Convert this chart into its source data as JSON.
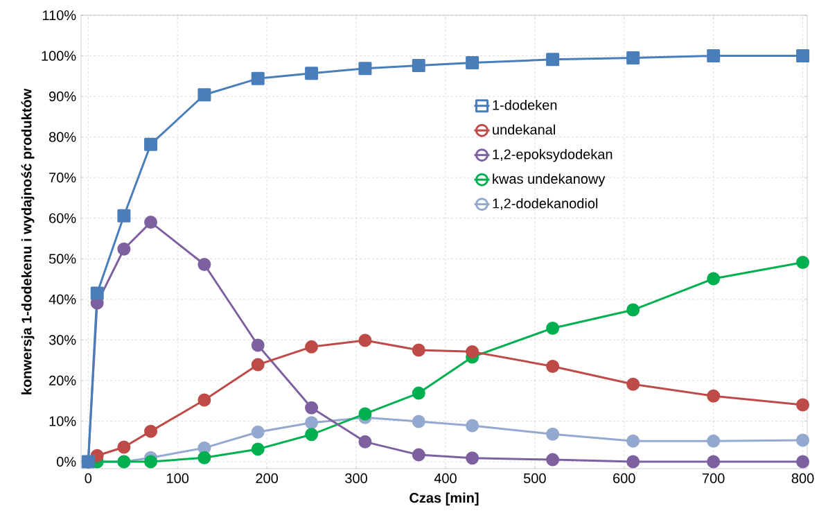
{
  "chart_data": {
    "type": "line",
    "xlabel": "Czas [min]",
    "ylabel": "konwersja 1-dodekenu i wydajność produktów",
    "x": [
      0,
      10,
      40,
      70,
      130,
      190,
      250,
      310,
      370,
      430,
      520,
      610,
      700,
      800
    ],
    "series": [
      {
        "name": "1-dodeken",
        "color": "#4a7ebb",
        "marker": "square",
        "values": [
          0,
          41.5,
          60.6,
          78.2,
          90.4,
          94.4,
          95.7,
          96.9,
          97.6,
          98.3,
          99.1,
          99.5,
          100,
          100
        ]
      },
      {
        "name": "undekanal",
        "color": "#be4b48",
        "marker": "circle",
        "values": [
          0,
          1.5,
          3.6,
          7.5,
          15.2,
          23.9,
          28.3,
          29.9,
          27.5,
          27.1,
          23.5,
          19.1,
          16.2,
          14.0
        ]
      },
      {
        "name": "1,2-epoksydodekan",
        "color": "#7d60a0",
        "marker": "circle",
        "values": [
          0,
          39.1,
          52.4,
          59.0,
          48.6,
          28.7,
          13.3,
          4.9,
          1.7,
          0.9,
          0.5,
          0,
          0,
          0
        ]
      },
      {
        "name": "kwas undekanowy",
        "color": "#00b050",
        "marker": "circle",
        "values": [
          0,
          0,
          0,
          0,
          1.0,
          3.1,
          6.7,
          11.8,
          16.9,
          25.8,
          32.9,
          37.4,
          45.1,
          49.1
        ]
      },
      {
        "name": "1,2-dodekanodiol",
        "color": "#93a9cf",
        "marker": "circle",
        "values": [
          0,
          0,
          0,
          1.0,
          3.4,
          7.3,
          9.6,
          10.9,
          9.9,
          8.9,
          6.8,
          5.1,
          5.1,
          5.3
        ]
      }
    ],
    "xlim": [
      -8,
      805
    ],
    "ylim": [
      -1.7,
      110
    ],
    "xticks": [
      0,
      100,
      200,
      300,
      400,
      500,
      600,
      700,
      800
    ],
    "yticks": [
      {
        "value": 0,
        "label": "0%"
      },
      {
        "value": 10,
        "label": "10%"
      },
      {
        "value": 20,
        "label": "20%"
      },
      {
        "value": 30,
        "label": "30%"
      },
      {
        "value": 40,
        "label": "40%"
      },
      {
        "value": 50,
        "label": "50%"
      },
      {
        "value": 60,
        "label": "60%"
      },
      {
        "value": 70,
        "label": "70%"
      },
      {
        "value": 80,
        "label": "80%"
      },
      {
        "value": 90,
        "label": "90%"
      },
      {
        "value": 100,
        "label": "100%"
      },
      {
        "value": 110,
        "label": "110%"
      }
    ],
    "grid": true,
    "legend": "right",
    "line_style": "solid"
  }
}
